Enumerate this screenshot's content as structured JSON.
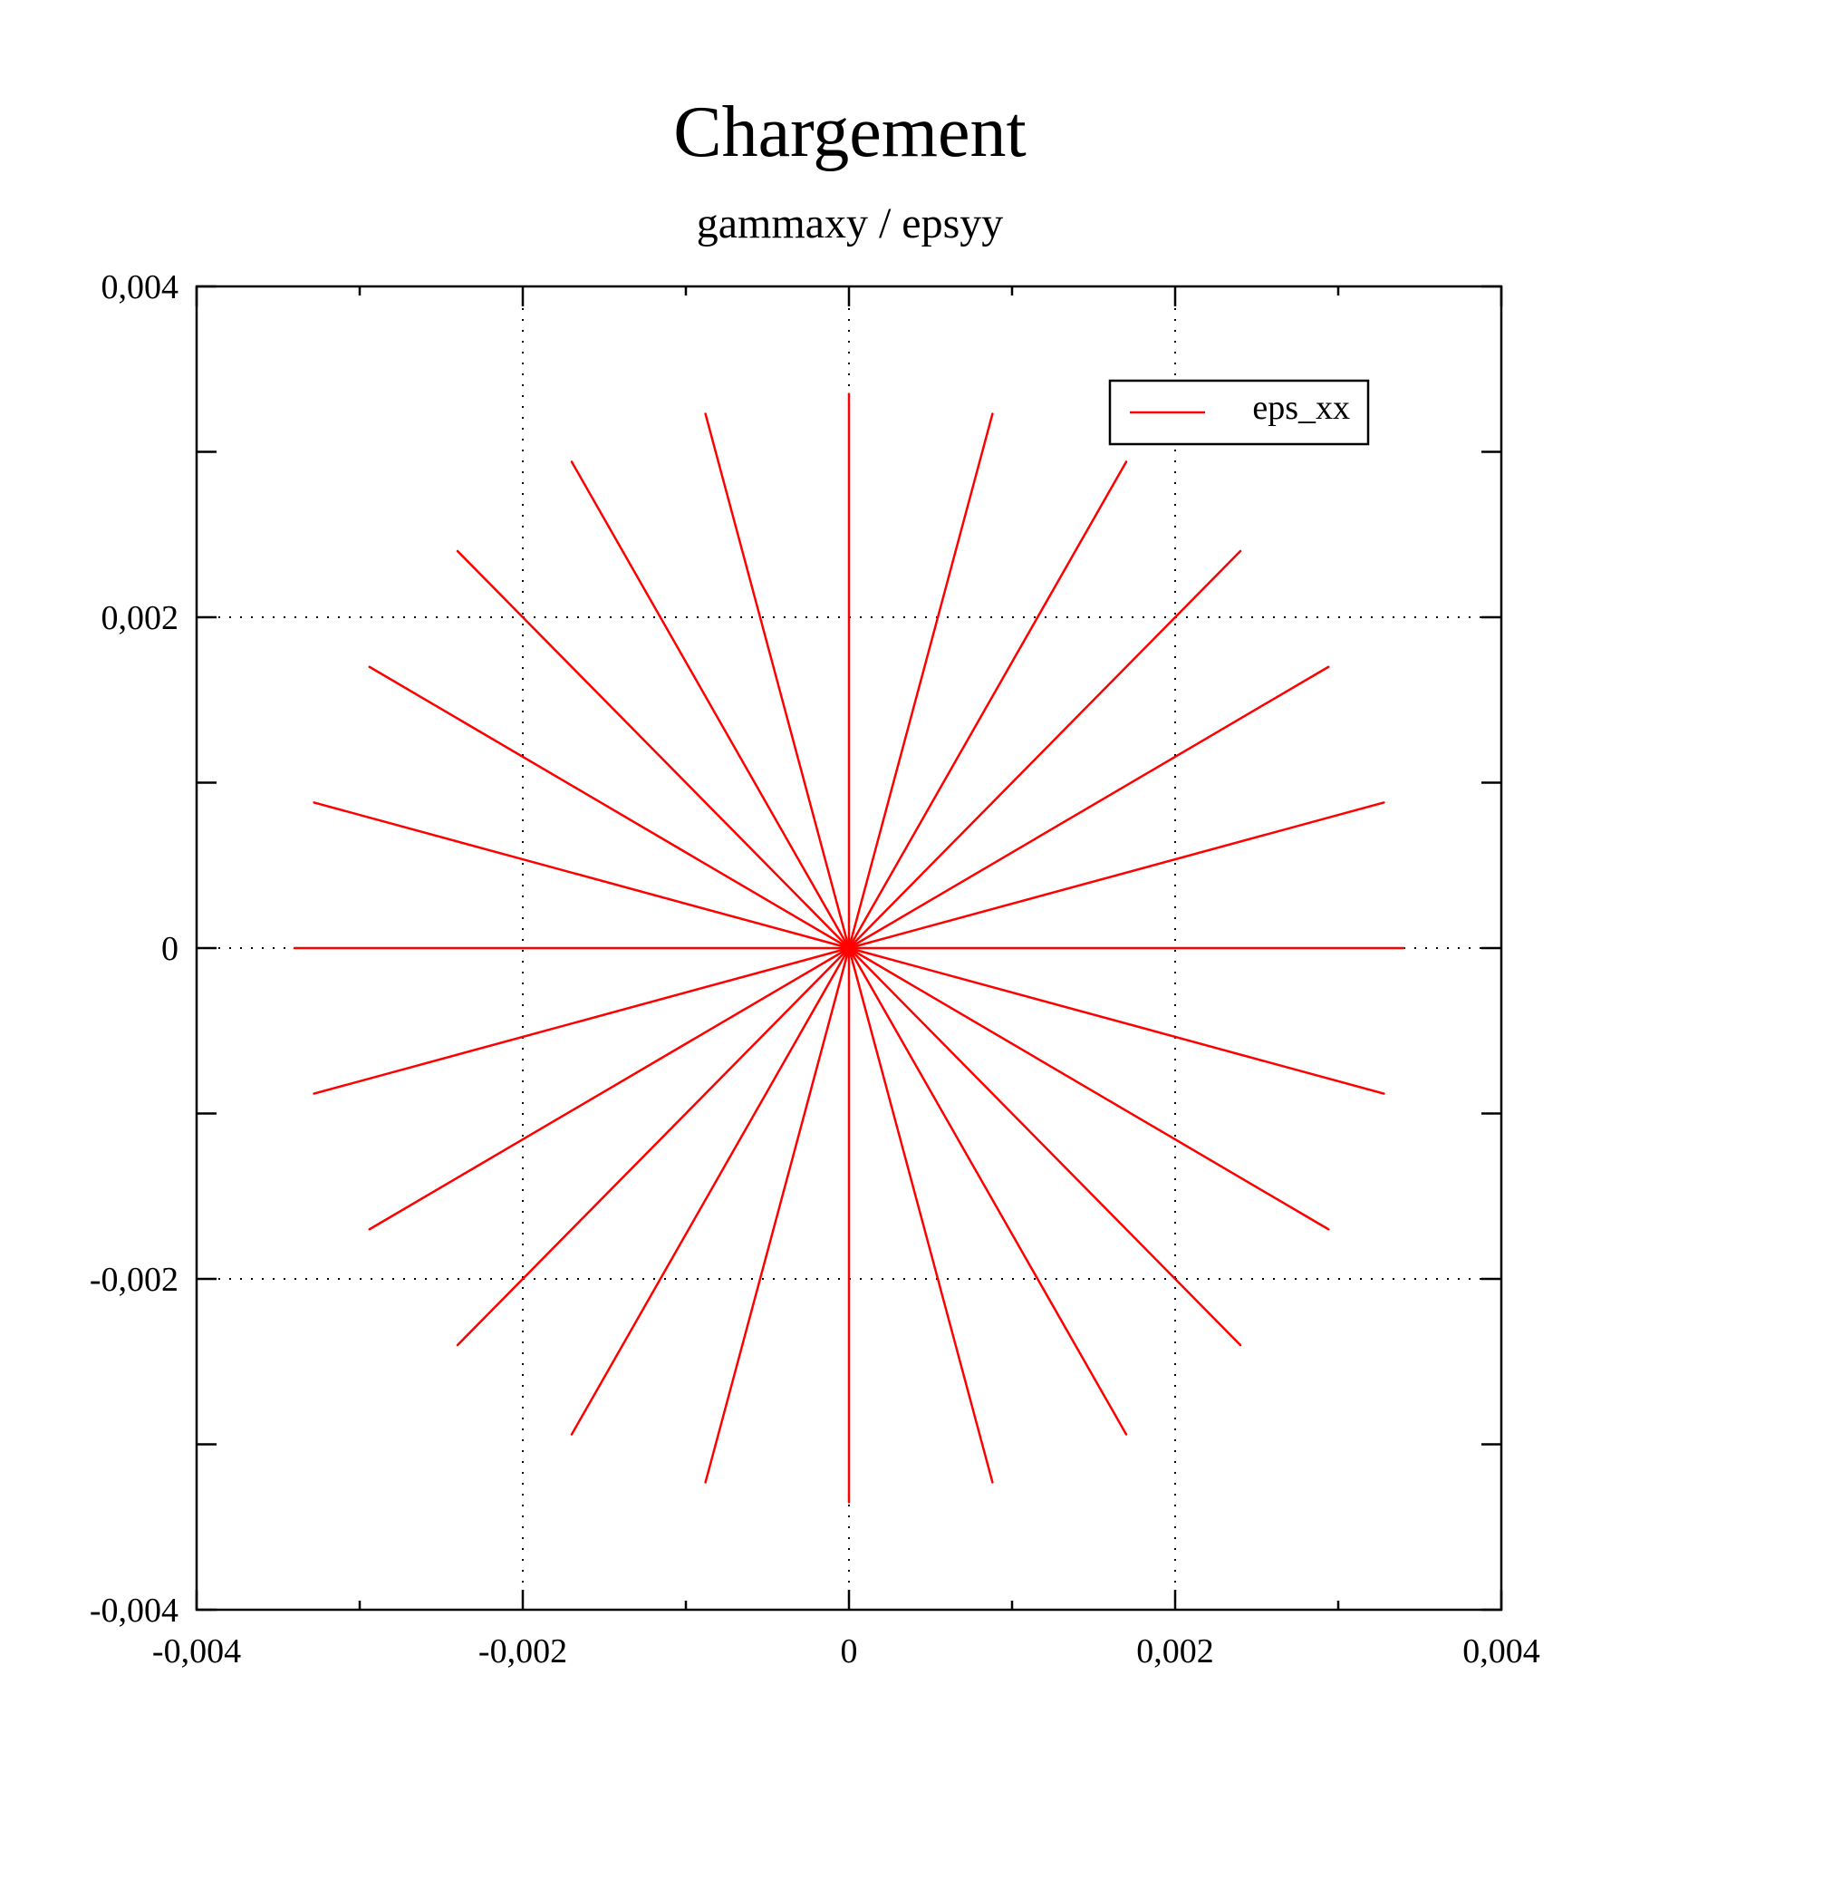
{
  "chart_data": {
    "type": "line",
    "title": "Chargement",
    "subtitle": "gammaxy / epsyy",
    "xlabel": "",
    "ylabel": "",
    "xlim": [
      -0.004,
      0.004
    ],
    "ylim": [
      -0.004,
      0.004
    ],
    "x_ticks": [
      -0.004,
      -0.002,
      0,
      0.002,
      0.004
    ],
    "y_ticks": [
      -0.004,
      -0.002,
      0,
      0.002,
      0.004
    ],
    "x_tick_labels": [
      "-0,004",
      "-0,002",
      "0",
      "0,002",
      "0,004"
    ],
    "y_tick_labels": [
      "-0,004",
      "-0,002",
      "0",
      "0,002",
      "0,004"
    ],
    "grid": true,
    "legend_position": "top-right",
    "series": [
      {
        "name": "eps_xx",
        "color": "#ff0000",
        "segments": [
          [
            [
              0,
              0
            ],
            [
              0.0034,
              0
            ]
          ],
          [
            [
              0,
              0
            ],
            [
              0.00328,
              0.00088
            ]
          ],
          [
            [
              0,
              0
            ],
            [
              0.00294,
              0.0017
            ]
          ],
          [
            [
              0,
              0
            ],
            [
              0.0024,
              0.0024
            ]
          ],
          [
            [
              0,
              0
            ],
            [
              0.0017,
              0.00294
            ]
          ],
          [
            [
              0,
              0
            ],
            [
              0.00088,
              0.00323
            ]
          ],
          [
            [
              0,
              0
            ],
            [
              0,
              0.00335
            ]
          ],
          [
            [
              0,
              0
            ],
            [
              -0.00088,
              0.00323
            ]
          ],
          [
            [
              0,
              0
            ],
            [
              -0.0017,
              0.00294
            ]
          ],
          [
            [
              0,
              0
            ],
            [
              -0.0024,
              0.0024
            ]
          ],
          [
            [
              0,
              0
            ],
            [
              -0.00294,
              0.0017
            ]
          ],
          [
            [
              0,
              0
            ],
            [
              -0.00328,
              0.00088
            ]
          ],
          [
            [
              0,
              0
            ],
            [
              -0.0034,
              0
            ]
          ],
          [
            [
              0,
              0
            ],
            [
              -0.00328,
              -0.00088
            ]
          ],
          [
            [
              0,
              0
            ],
            [
              -0.00294,
              -0.0017
            ]
          ],
          [
            [
              0,
              0
            ],
            [
              -0.0024,
              -0.0024
            ]
          ],
          [
            [
              0,
              0
            ],
            [
              -0.0017,
              -0.00294
            ]
          ],
          [
            [
              0,
              0
            ],
            [
              -0.00088,
              -0.00323
            ]
          ],
          [
            [
              0,
              0
            ],
            [
              0,
              -0.00335
            ]
          ],
          [
            [
              0,
              0
            ],
            [
              0.00088,
              -0.00323
            ]
          ],
          [
            [
              0,
              0
            ],
            [
              0.0017,
              -0.00294
            ]
          ],
          [
            [
              0,
              0
            ],
            [
              0.0024,
              -0.0024
            ]
          ],
          [
            [
              0,
              0
            ],
            [
              0.00294,
              -0.0017
            ]
          ],
          [
            [
              0,
              0
            ],
            [
              0.00328,
              -0.00088
            ]
          ]
        ]
      }
    ]
  }
}
